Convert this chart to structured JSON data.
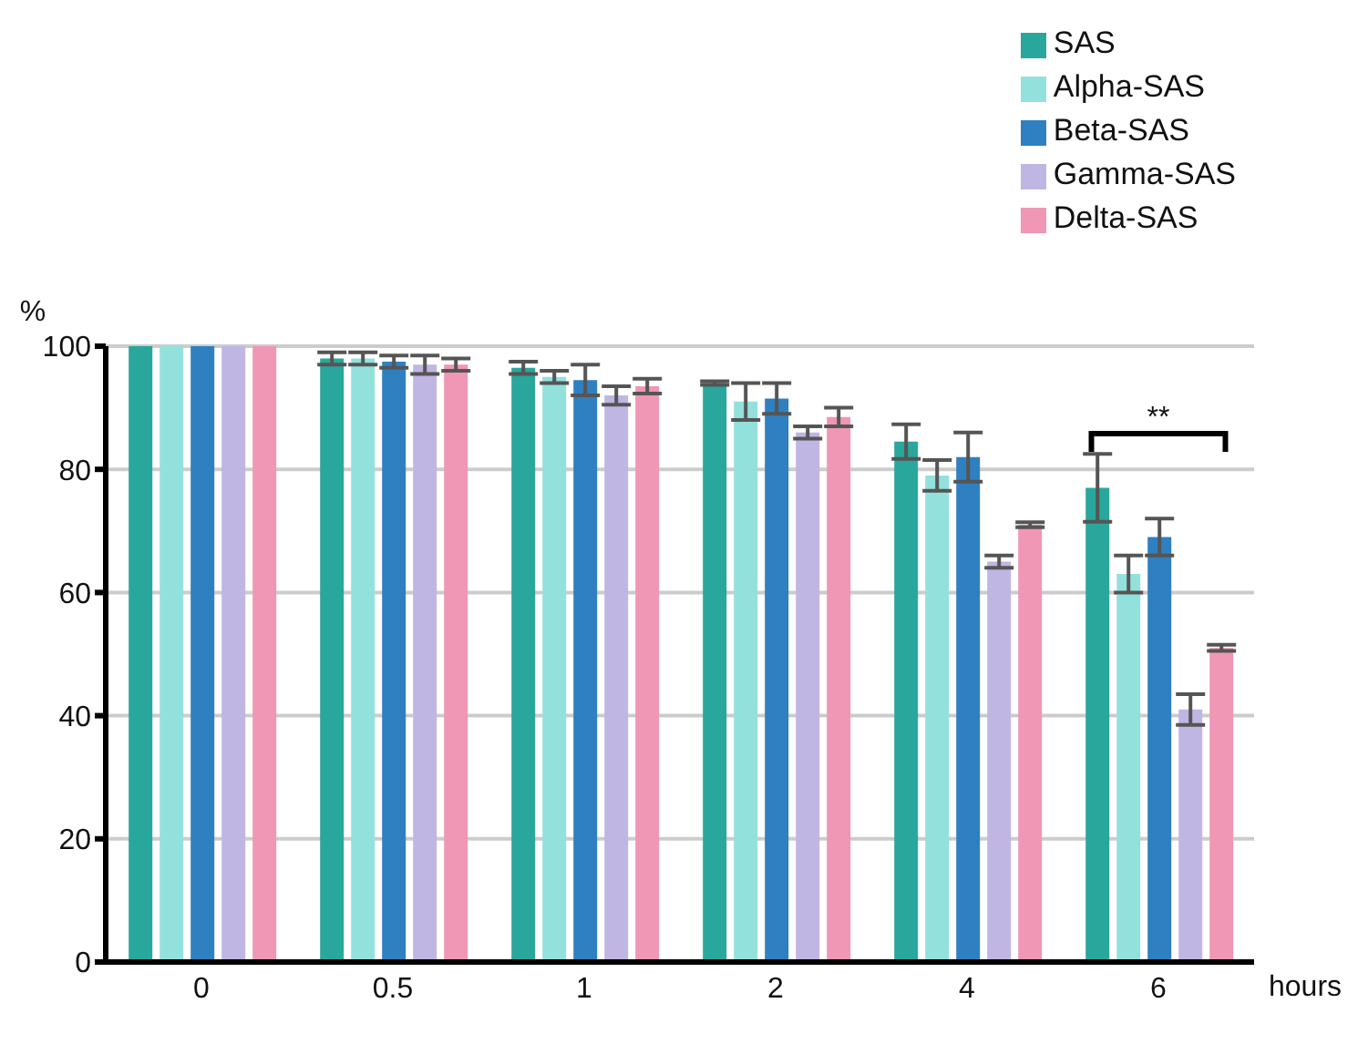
{
  "chart_data": {
    "type": "bar",
    "ylabel": "%",
    "xlabel": "hours",
    "categories": [
      "0",
      "0.5",
      "1",
      "2",
      "4",
      "6"
    ],
    "series": [
      {
        "name": "SAS",
        "color": "#2aa79c",
        "values": [
          100,
          98,
          96.5,
          94,
          84.5,
          77
        ],
        "errors": [
          null,
          1,
          1,
          0.3,
          2.8,
          5.5
        ]
      },
      {
        "name": "Alpha-SAS",
        "color": "#93e1dc",
        "values": [
          100,
          98,
          95,
          91,
          79,
          63
        ],
        "errors": [
          null,
          1,
          1,
          3,
          2.5,
          3
        ]
      },
      {
        "name": "Beta-SAS",
        "color": "#2f80c0",
        "values": [
          100,
          97.5,
          94.5,
          91.5,
          82,
          69
        ],
        "errors": [
          null,
          1,
          2.5,
          2.5,
          4,
          3
        ]
      },
      {
        "name": "Gamma-SAS",
        "color": "#c0b6e4",
        "values": [
          100,
          97,
          92,
          86,
          65,
          41
        ],
        "errors": [
          null,
          1.5,
          1.5,
          1,
          1,
          2.5
        ]
      },
      {
        "name": "Delta-SAS",
        "color": "#ef97b5",
        "values": [
          100,
          97,
          93.5,
          88.5,
          71,
          51
        ],
        "errors": [
          null,
          1,
          1.2,
          1.5,
          0.4,
          0.5
        ]
      }
    ],
    "ylim": [
      0,
      100
    ],
    "yticks": [
      0,
      20,
      40,
      60,
      80,
      100
    ],
    "grid": "y",
    "legend": "top right",
    "annotations": [
      "**"
    ]
  }
}
